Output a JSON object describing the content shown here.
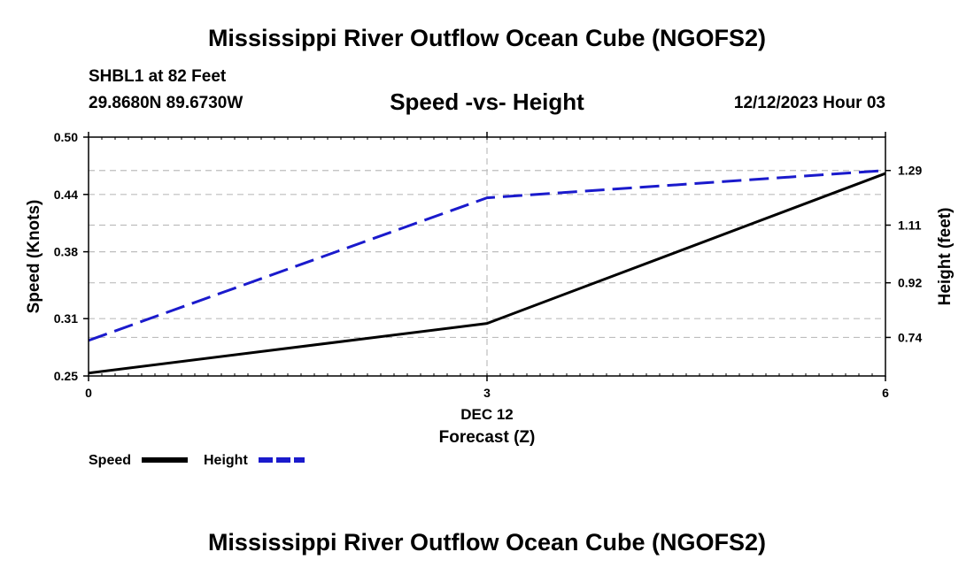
{
  "figure": {
    "main_title": "Mississippi River Outflow Ocean Cube (NGOFS2)",
    "station": "SHBL1 at 82 Feet",
    "coords": "29.8680N  89.6730W",
    "subtitle": "Speed -vs- Height",
    "datetime": "12/12/2023 Hour 03",
    "footer_title": "Mississippi River Outflow Ocean Cube (NGOFS2)"
  },
  "chart_data": {
    "type": "line",
    "title": "Speed -vs- Height",
    "xlabel": "Forecast (Z)",
    "xdate_label": "DEC 12",
    "ylabel_left": "Speed (Knots)",
    "ylabel_right": "Height (feet)",
    "x": [
      0,
      3,
      6
    ],
    "x_ticks": [
      "0",
      "3",
      "6"
    ],
    "xlim": [
      0,
      6
    ],
    "ylim_left": [
      0.25,
      0.5
    ],
    "y_ticks_left": [
      "0.50",
      "0.44",
      "0.38",
      "0.31",
      "0.25"
    ],
    "y_ticks_left_values": [
      0.5,
      0.44,
      0.38,
      0.31,
      0.25
    ],
    "ylim_right": [
      0.613,
      1.4
    ],
    "y_ticks_right": [
      "1.29",
      "1.11",
      "0.92",
      "0.74"
    ],
    "y_ticks_right_values": [
      1.29,
      1.11,
      0.92,
      0.74
    ],
    "grid": true,
    "series": [
      {
        "name": "Speed",
        "axis": "left",
        "values": [
          0.253,
          0.305,
          0.462
        ],
        "color": "#000000",
        "style": "solid"
      },
      {
        "name": "Height",
        "axis": "right",
        "values": [
          0.73,
          1.2,
          1.29
        ],
        "color": "#1a1acc",
        "style": "dashed"
      }
    ],
    "legend": [
      {
        "label": "Speed",
        "color": "#000000"
      },
      {
        "label": "Height",
        "color": "#1a1acc"
      }
    ]
  }
}
